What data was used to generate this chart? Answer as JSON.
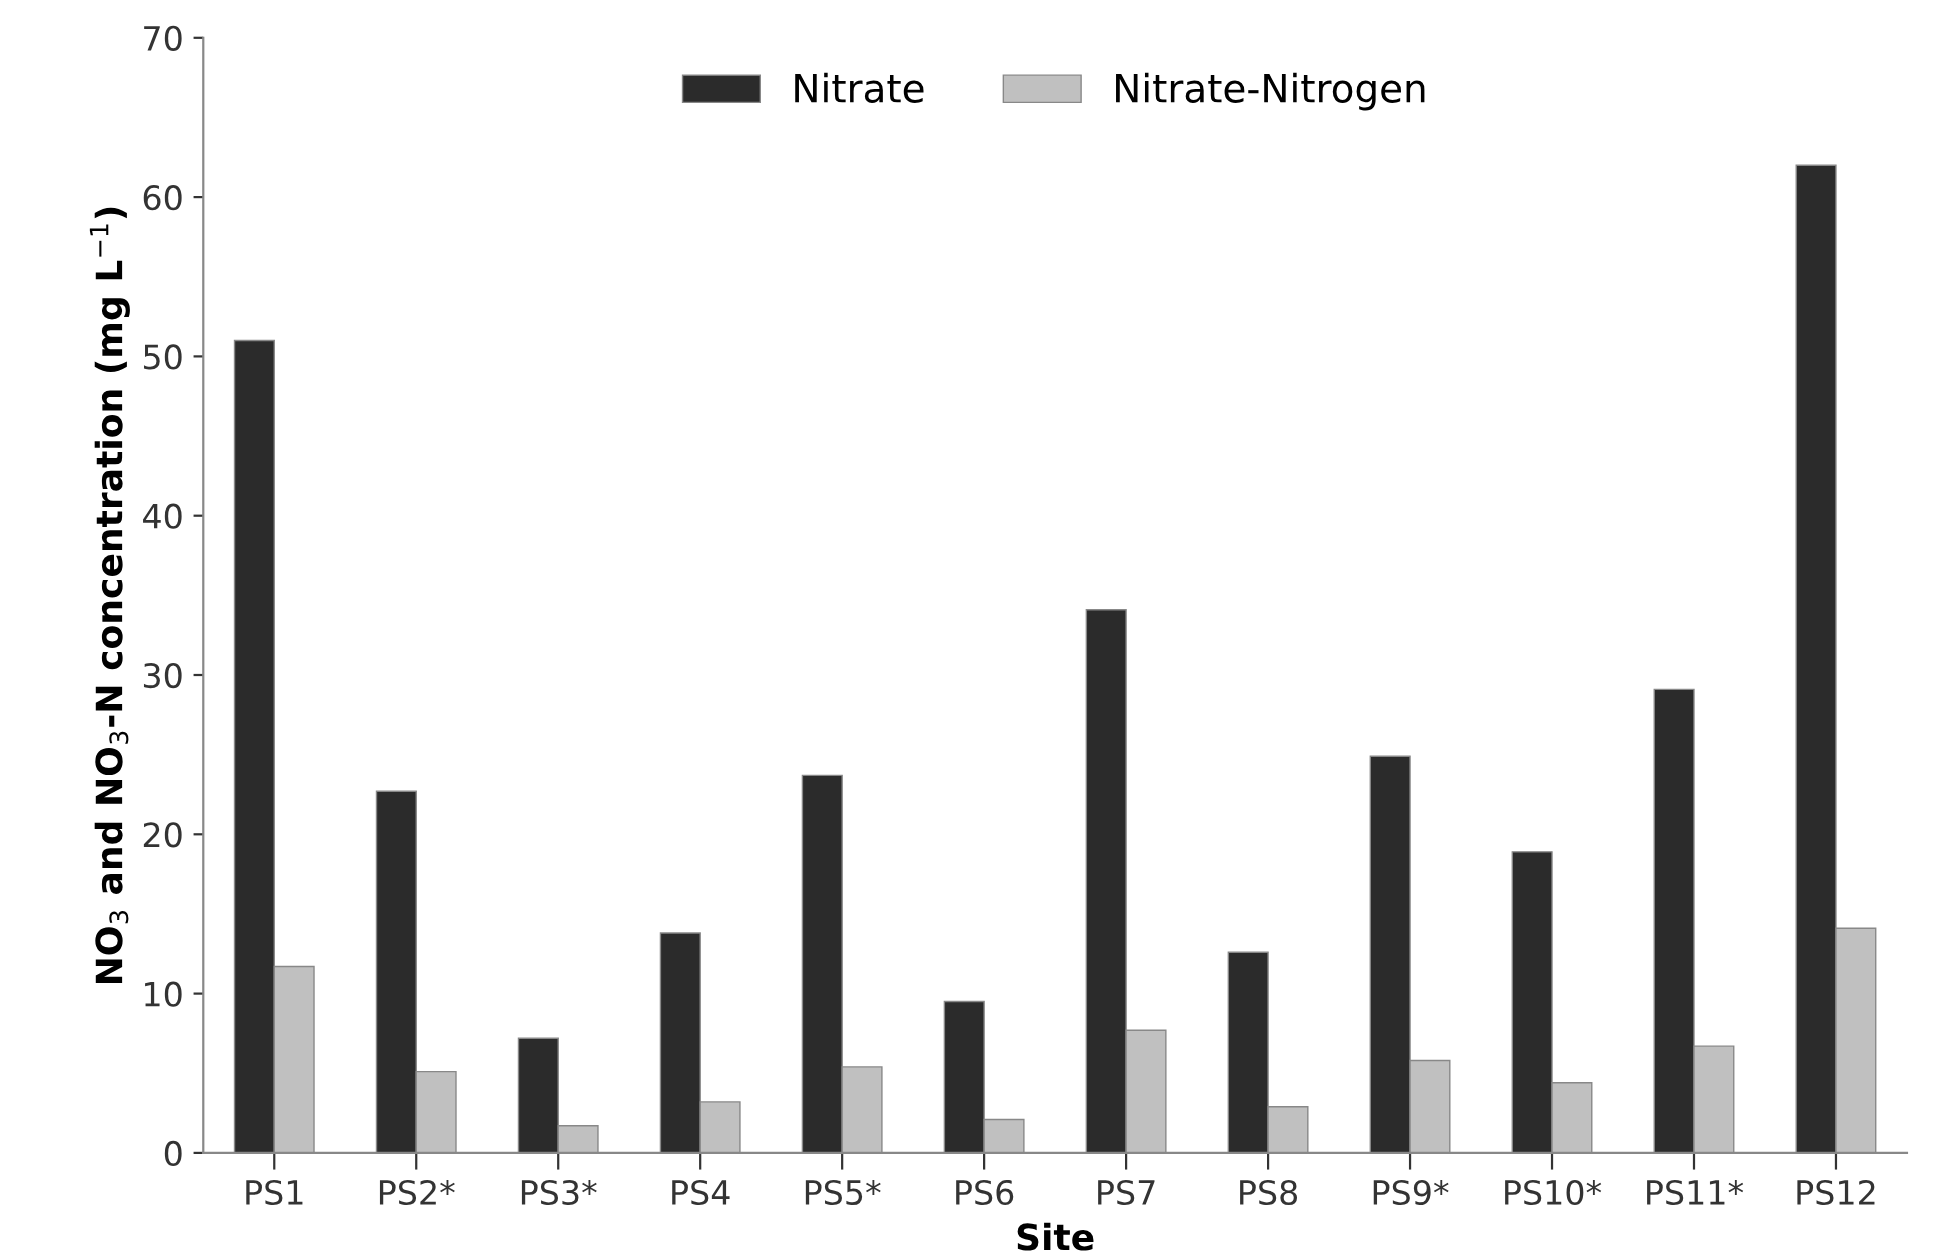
{
  "chart_data": {
    "type": "bar",
    "xlabel": "Site",
    "ylabel": "NO$_{3}$ and NO$_{3}$-N concentration (mg L$^{−1}$)",
    "categories": [
      "PS1",
      "PS2*",
      "PS3*",
      "PS4",
      "PS5*",
      "PS6",
      "PS7",
      "PS8",
      "PS9*",
      "PS10*",
      "PS11*",
      "PS12"
    ],
    "series": [
      {
        "name": "Nitrate",
        "color": "#2b2b2b",
        "values": [
          51.0,
          22.7,
          7.2,
          13.8,
          23.7,
          9.5,
          34.1,
          12.6,
          24.9,
          18.9,
          29.1,
          62.0
        ]
      },
      {
        "name": "Nitrate-Nitrogen",
        "color": "#c0c0c0",
        "values": [
          11.7,
          5.1,
          1.7,
          3.2,
          5.4,
          2.1,
          7.7,
          2.9,
          5.8,
          4.4,
          6.7,
          14.1
        ]
      }
    ],
    "ylim": [
      0,
      70
    ],
    "yticks": [
      0,
      10,
      20,
      30,
      40,
      50,
      60,
      70
    ],
    "grid": false,
    "legend": "top"
  }
}
